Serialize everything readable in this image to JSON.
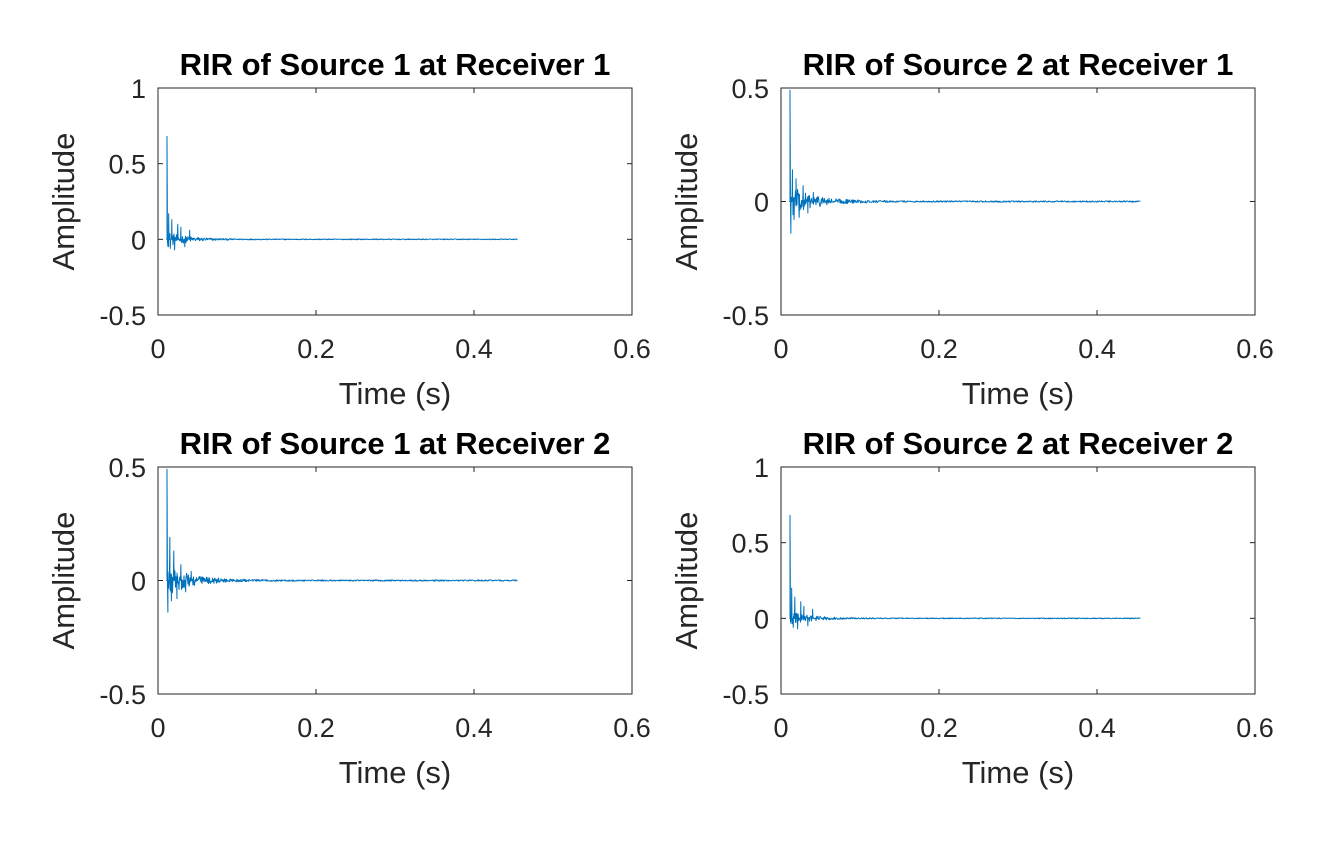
{
  "chart_data": [
    {
      "type": "line",
      "title": "RIR of Source 1 at Receiver 1",
      "xlabel": "Time (s)",
      "ylabel": "Amplitude",
      "xlim": [
        0,
        0.6
      ],
      "ylim": [
        -0.5,
        1
      ],
      "xticks": [
        0,
        0.2,
        0.4,
        0.6
      ],
      "xtick_labels": [
        "0",
        "0.2",
        "0.4",
        "0.6"
      ],
      "yticks": [
        -0.5,
        0,
        0.5,
        1
      ],
      "ytick_labels": [
        "-0.5",
        "0",
        "0.5",
        "1"
      ],
      "grid": false,
      "series": [
        {
          "color": "#0072BD",
          "x_end": 0.455,
          "direct_time": 0.0112,
          "direct_peak": 0.68,
          "early_reflections": [
            [
              0.0135,
              0.17
            ],
            [
              0.0155,
              -0.06
            ],
            [
              0.0175,
              0.13
            ],
            [
              0.021,
              -0.07
            ],
            [
              0.025,
              0.1
            ],
            [
              0.029,
              0.08
            ],
            [
              0.034,
              -0.05
            ],
            [
              0.04,
              0.06
            ]
          ],
          "noise_amplitude": 0.05,
          "decay_constant": 0.025,
          "tail_amplitude": 0.003
        }
      ]
    },
    {
      "type": "line",
      "title": "RIR of Source 2 at Receiver 1",
      "xlabel": "Time (s)",
      "ylabel": "Amplitude",
      "xlim": [
        0,
        0.6
      ],
      "ylim": [
        -0.5,
        0.5
      ],
      "xticks": [
        0,
        0.2,
        0.4,
        0.6
      ],
      "xtick_labels": [
        "0",
        "0.2",
        "0.4",
        "0.6"
      ],
      "yticks": [
        -0.5,
        0,
        0.5
      ],
      "ytick_labels": [
        "-0.5",
        "0",
        "0.5"
      ],
      "grid": false,
      "series": [
        {
          "color": "#0072BD",
          "x_end": 0.455,
          "direct_time": 0.0112,
          "direct_peak": 0.49,
          "early_reflections": [
            [
              0.0125,
              -0.14
            ],
            [
              0.0145,
              0.14
            ],
            [
              0.0165,
              -0.08
            ],
            [
              0.019,
              0.1
            ],
            [
              0.023,
              -0.07
            ],
            [
              0.028,
              0.07
            ],
            [
              0.034,
              -0.05
            ],
            [
              0.041,
              0.04
            ]
          ],
          "noise_amplitude": 0.07,
          "decay_constant": 0.03,
          "tail_amplitude": 0.003
        }
      ]
    },
    {
      "type": "line",
      "title": "RIR of Source 1 at Receiver 2",
      "xlabel": "Time (s)",
      "ylabel": "Amplitude",
      "xlim": [
        0,
        0.6
      ],
      "ylim": [
        -0.5,
        0.5
      ],
      "xticks": [
        0,
        0.2,
        0.4,
        0.6
      ],
      "xtick_labels": [
        "0",
        "0.2",
        "0.4",
        "0.6"
      ],
      "yticks": [
        -0.5,
        0,
        0.5
      ],
      "ytick_labels": [
        "-0.5",
        "0",
        "0.5"
      ],
      "grid": false,
      "series": [
        {
          "color": "#0072BD",
          "x_end": 0.455,
          "direct_time": 0.0112,
          "direct_peak": 0.49,
          "early_reflections": [
            [
              0.0125,
              -0.14
            ],
            [
              0.015,
              0.19
            ],
            [
              0.017,
              -0.09
            ],
            [
              0.02,
              0.13
            ],
            [
              0.024,
              -0.08
            ],
            [
              0.029,
              0.07
            ],
            [
              0.035,
              -0.05
            ],
            [
              0.042,
              0.04
            ]
          ],
          "noise_amplitude": 0.07,
          "decay_constant": 0.03,
          "tail_amplitude": 0.003
        }
      ]
    },
    {
      "type": "line",
      "title": "RIR of Source 2 at Receiver 2",
      "xlabel": "Time (s)",
      "ylabel": "Amplitude",
      "xlim": [
        0,
        0.6
      ],
      "ylim": [
        -0.5,
        1
      ],
      "xticks": [
        0,
        0.2,
        0.4,
        0.6
      ],
      "xtick_labels": [
        "0",
        "0.2",
        "0.4",
        "0.6"
      ],
      "yticks": [
        -0.5,
        0,
        0.5,
        1
      ],
      "ytick_labels": [
        "-0.5",
        "0",
        "0.5",
        "1"
      ],
      "grid": false,
      "series": [
        {
          "color": "#0072BD",
          "x_end": 0.455,
          "direct_time": 0.0112,
          "direct_peak": 0.68,
          "early_reflections": [
            [
              0.0135,
              0.2
            ],
            [
              0.0155,
              -0.06
            ],
            [
              0.0175,
              0.14
            ],
            [
              0.021,
              -0.07
            ],
            [
              0.025,
              0.11
            ],
            [
              0.029,
              0.08
            ],
            [
              0.034,
              -0.05
            ],
            [
              0.04,
              0.06
            ]
          ],
          "noise_amplitude": 0.05,
          "decay_constant": 0.025,
          "tail_amplitude": 0.003
        }
      ]
    }
  ]
}
